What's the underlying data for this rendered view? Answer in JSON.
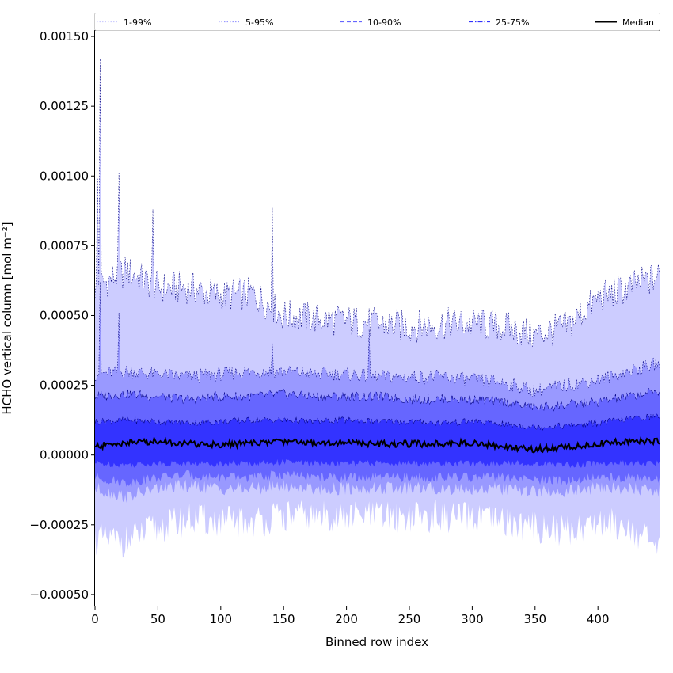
{
  "chart_data": {
    "type": "area",
    "xlabel": "Binned row index",
    "ylabel": "HCHO vertical column [mol m⁻²]",
    "xlim": [
      0,
      449
    ],
    "ylim": [
      -0.00054,
      0.00152
    ],
    "x_ticks": [
      0,
      50,
      100,
      150,
      200,
      250,
      300,
      350,
      400
    ],
    "x_tick_labels": [
      "0",
      "50",
      "100",
      "150",
      "200",
      "250",
      "300",
      "350",
      "400"
    ],
    "y_ticks": [
      -0.0005,
      -0.00025,
      0,
      0.00025,
      0.0005,
      0.00075,
      0.001,
      0.00125,
      0.0015
    ],
    "y_tick_labels": [
      "−0.00050",
      "−0.00025",
      "0.00000",
      "0.00025",
      "0.00050",
      "0.00075",
      "0.00100",
      "0.00125",
      "0.00150"
    ],
    "grid": false,
    "legend_position": "top",
    "legend": [
      {
        "label": "1-99%",
        "color": "#ccccff",
        "style": "dotted"
      },
      {
        "label": "5-95%",
        "color": "#9999ff",
        "style": "dotted"
      },
      {
        "label": "10-90%",
        "color": "#6666ff",
        "style": "dashed"
      },
      {
        "label": "25-75%",
        "color": "#3333ff",
        "style": "dashdot"
      },
      {
        "label": "Median",
        "color": "#000000",
        "style": "solid"
      }
    ],
    "x": [
      0,
      25,
      50,
      75,
      100,
      125,
      150,
      175,
      200,
      225,
      250,
      275,
      300,
      325,
      350,
      375,
      400,
      425,
      449
    ],
    "series": [
      {
        "name": "Median",
        "values": [
          3e-05,
          4.5e-05,
          5e-05,
          4e-05,
          3.8e-05,
          4.2e-05,
          5e-05,
          4.5e-05,
          4.5e-05,
          4e-05,
          4e-05,
          4e-05,
          4.5e-05,
          3e-05,
          2e-05,
          3e-05,
          4e-05,
          5e-05,
          5e-05
        ]
      },
      {
        "name": "25-75%",
        "lower": [
          -3e-05,
          -3.5e-05,
          -3e-05,
          -3e-05,
          -3e-05,
          -3e-05,
          -2.5e-05,
          -3e-05,
          -3e-05,
          -3e-05,
          -3e-05,
          -3e-05,
          -3e-05,
          -3e-05,
          -3e-05,
          -3.5e-05,
          -3e-05,
          -3e-05,
          -3e-05
        ],
        "upper": [
          0.00012,
          0.000125,
          0.00012,
          0.000115,
          0.00012,
          0.000125,
          0.000125,
          0.00012,
          0.000125,
          0.00012,
          0.00012,
          0.000115,
          0.00012,
          0.00011,
          0.0001,
          0.000105,
          0.000115,
          0.00013,
          0.00014
        ]
      },
      {
        "name": "10-90%",
        "lower": [
          -8e-05,
          -0.0001,
          -8e-05,
          -7e-05,
          -8e-05,
          -8e-05,
          -7e-05,
          -8e-05,
          -8e-05,
          -8e-05,
          -8e-05,
          -8e-05,
          -8e-05,
          -8e-05,
          -9e-05,
          -9e-05,
          -8e-05,
          -8e-05,
          -9e-05
        ],
        "upper": [
          0.00021,
          0.00022,
          0.00021,
          0.0002,
          0.00021,
          0.00021,
          0.00022,
          0.00021,
          0.00021,
          0.00021,
          0.0002,
          0.0002,
          0.0002,
          0.00019,
          0.00017,
          0.00018,
          0.00019,
          0.00021,
          0.00023
        ]
      },
      {
        "name": "5-95%",
        "lower": [
          -0.00012,
          -0.00015,
          -0.00012,
          -0.00011,
          -0.00012,
          -0.00012,
          -0.00011,
          -0.00012,
          -0.00012,
          -0.00012,
          -0.00012,
          -0.00012,
          -0.00012,
          -0.00012,
          -0.00013,
          -0.00013,
          -0.00012,
          -0.00012,
          -0.00013
        ],
        "upper": [
          0.00029,
          0.0003,
          0.00029,
          0.00028,
          0.00029,
          0.0003,
          0.0003,
          0.00029,
          0.00029,
          0.00028,
          0.00028,
          0.00028,
          0.00027,
          0.00026,
          0.00023,
          0.00025,
          0.00027,
          0.0003,
          0.00033
        ]
      },
      {
        "name": "1-99%",
        "lower": [
          -0.0003,
          -0.00031,
          -0.00026,
          -0.00023,
          -0.00024,
          -0.00024,
          -0.00022,
          -0.00022,
          -0.00022,
          -0.00022,
          -0.00022,
          -0.00022,
          -0.00023,
          -0.00024,
          -0.00026,
          -0.00027,
          -0.00024,
          -0.00025,
          -0.00035
        ],
        "upper": [
          0.0006,
          0.00066,
          0.0006,
          0.0006,
          0.00057,
          0.00058,
          0.0005,
          0.00049,
          0.00048,
          0.00047,
          0.00046,
          0.00047,
          0.00047,
          0.00046,
          0.00043,
          0.00046,
          0.00056,
          0.0006,
          0.00064
        ]
      }
    ],
    "annotations": [
      {
        "x": 4,
        "series": "1-99%",
        "upper": 0.00142
      },
      {
        "x": 2,
        "series": "1-99%",
        "upper": 0.00099
      },
      {
        "x": 19,
        "series": "1-99%",
        "upper": 0.00101
      },
      {
        "x": 46,
        "series": "1-99%",
        "upper": 0.00088
      },
      {
        "x": 141,
        "series": "1-99%",
        "upper": 0.00089
      },
      {
        "x": 141,
        "series": "5-95%",
        "upper": 0.0004
      },
      {
        "x": 218,
        "series": "5-95%",
        "upper": 0.00045
      },
      {
        "x": 19,
        "series": "5-95%",
        "upper": 0.00051
      },
      {
        "x": 4,
        "series": "5-95%",
        "upper": 0.00062
      }
    ]
  }
}
